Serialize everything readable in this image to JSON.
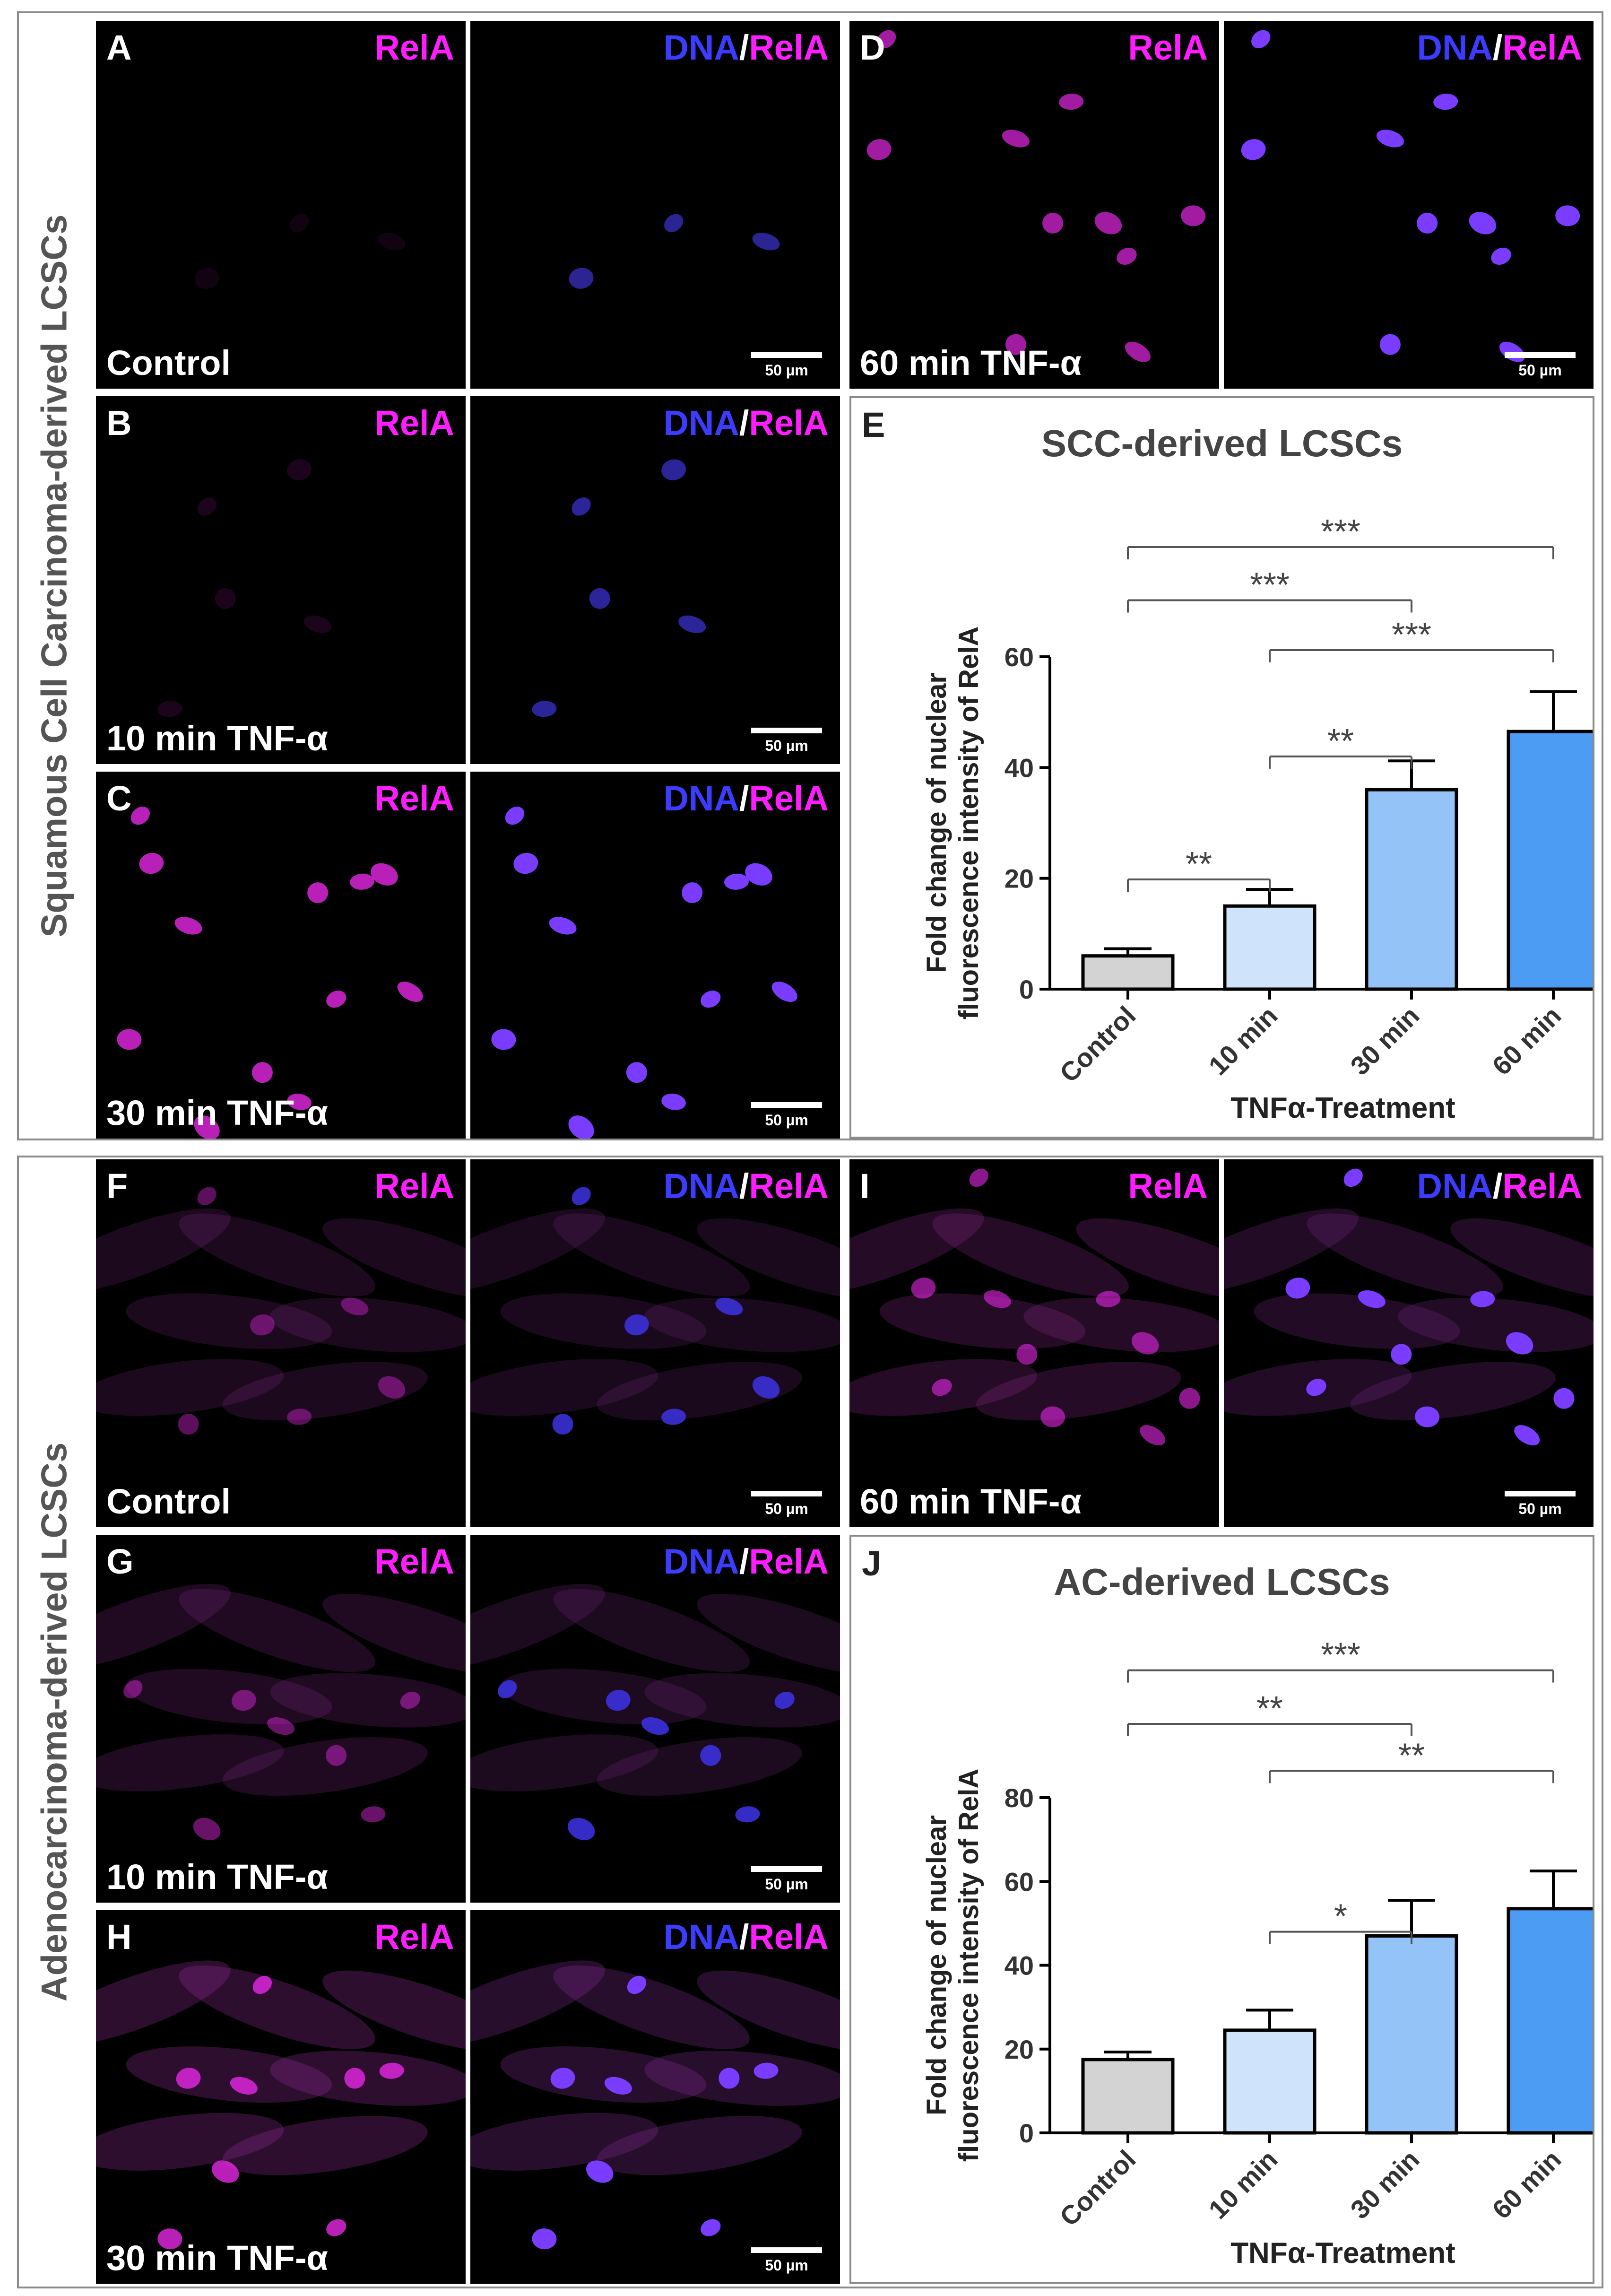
{
  "groups": {
    "scc_label": "Squamous Cell Carcinoma-derived LCSCs",
    "ac_label": "Adenocarcinoma-derived LCSCs"
  },
  "stain": {
    "rela": "RelA",
    "dna": "DNA",
    "sep": "/"
  },
  "scale_bar": "50 µm",
  "panels": {
    "A": {
      "letter": "A",
      "condition": "Control"
    },
    "B": {
      "letter": "B",
      "condition": "10 min TNF-α"
    },
    "C": {
      "letter": "C",
      "condition": "30 min TNF-α"
    },
    "D": {
      "letter": "D",
      "condition": "60 min TNF-α"
    },
    "E": {
      "letter": "E"
    },
    "F": {
      "letter": "F",
      "condition": "Control"
    },
    "G": {
      "letter": "G",
      "condition": "10 min TNF-α"
    },
    "H": {
      "letter": "H",
      "condition": "30 min TNF-α"
    },
    "I": {
      "letter": "I",
      "condition": "60 min TNF-α"
    },
    "J": {
      "letter": "J"
    }
  },
  "colors": {
    "rela": "#ff1dff",
    "dna": "#3c3cff",
    "bar_control": "#d3d3d3",
    "bar_10": "#cfe3fb",
    "bar_30": "#93c3f7",
    "bar_60": "#4d9cf3"
  },
  "chart_data": [
    {
      "panel": "E",
      "type": "bar",
      "title": "SCC-derived LCSCs",
      "xlabel": "TNFα-Treatment",
      "ylabel_lines": [
        "Fold change of nuclear",
        "fluorescence intensity of RelA"
      ],
      "categories": [
        "Control",
        "10 min",
        "30 min",
        "60 min"
      ],
      "values": [
        6,
        15,
        36,
        46.5
      ],
      "errors": [
        1.3,
        3,
        5.2,
        7.2
      ],
      "ylim": [
        0,
        60
      ],
      "yticks": [
        0,
        20,
        40,
        60
      ],
      "significance": [
        {
          "from": 0,
          "to": 1,
          "label": "**"
        },
        {
          "from": 1,
          "to": 2,
          "label": "**"
        },
        {
          "from": 1,
          "to": 3,
          "label": "***"
        },
        {
          "from": 0,
          "to": 2,
          "label": "***"
        },
        {
          "from": 0,
          "to": 3,
          "label": "***"
        }
      ]
    },
    {
      "panel": "J",
      "type": "bar",
      "title": "AC-derived LCSCs",
      "xlabel": "TNFα-Treatment",
      "ylabel_lines": [
        "Fold change of nuclear",
        "fluorescence intensity of RelA"
      ],
      "categories": [
        "Control",
        "10 min",
        "30 min",
        "60 min"
      ],
      "values": [
        17.5,
        24.5,
        47,
        53.5
      ],
      "errors": [
        1.8,
        4.8,
        8.5,
        9
      ],
      "ylim": [
        0,
        80
      ],
      "yticks": [
        0,
        20,
        40,
        60,
        80
      ],
      "significance": [
        {
          "from": 1,
          "to": 2,
          "label": "*"
        },
        {
          "from": 1,
          "to": 3,
          "label": "**"
        },
        {
          "from": 0,
          "to": 2,
          "label": "**"
        },
        {
          "from": 0,
          "to": 3,
          "label": "***"
        }
      ]
    }
  ]
}
